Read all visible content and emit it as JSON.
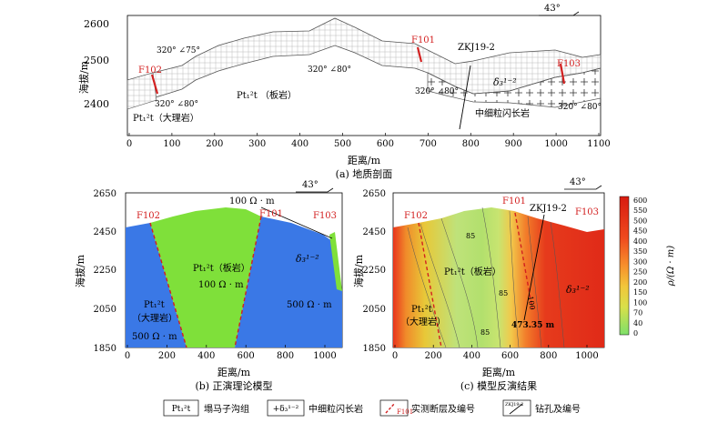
{
  "panel_a": {
    "caption": "(a) 地质剖面",
    "ylabel": "海拔/m",
    "xlabel": "距离/m",
    "yticks": [
      "2600",
      "2500",
      "2400"
    ],
    "xticks": [
      "0",
      "100",
      "200",
      "300",
      "400",
      "500",
      "600",
      "700",
      "800",
      "900",
      "1000",
      "1100"
    ],
    "north_angle": "43°",
    "faults": [
      "F102",
      "F101",
      "F103"
    ],
    "attitudes": [
      "320° ∠75°",
      "320° ∠80°",
      "320° ∠80°",
      "320° ∠80°",
      "320° ∠80°"
    ],
    "unit_slate": "Pt₁²t （板岩）",
    "unit_marble": "Pt₁²t（大理岩）",
    "unit_gabbro": "δ₃¹⁻²",
    "unit_gabbro_label": "中细粒闪长岩",
    "borehole": "ZKJ19-2"
  },
  "panel_b": {
    "caption": "(b) 正演理论模型",
    "ylabel": "海拔/m",
    "xlabel": "距离/m",
    "yticks": [
      "2650",
      "2450",
      "2250",
      "2050",
      "1850"
    ],
    "xticks": [
      "0",
      "200",
      "400",
      "600",
      "800",
      "1000"
    ],
    "north_angle": "43°",
    "faults": [
      "F102",
      "F101",
      "F103"
    ],
    "top_label": "100 Ω · m",
    "slate_label": "Pt₁²t（板岩）",
    "slate_res": "100 Ω · m",
    "marble_label": "Pt₁²t",
    "marble_sub": "（大理岩）",
    "marble_res": "500 Ω · m",
    "gabbro_label": "δ₃¹⁻²",
    "gabbro_res": "500 Ω · m",
    "colors": {
      "blue": "#3a78e6",
      "green": "#7fe03a"
    }
  },
  "panel_c": {
    "caption": "(c) 模型反演结果",
    "ylabel": "海拔/m",
    "xlabel": "距离/m",
    "yticks": [
      "2650",
      "2450",
      "2250",
      "2050",
      "1850"
    ],
    "xticks": [
      "0",
      "200",
      "400",
      "600",
      "800",
      "1000"
    ],
    "north_angle": "43°",
    "faults": [
      "F102",
      "F101",
      "F103"
    ],
    "borehole": "ZKJ19-2",
    "depth_label": "473.35 m",
    "contours": [
      "85",
      "85",
      "85",
      "100"
    ],
    "slate_label": "Pt₁²t（板岩）",
    "marble_label": "Pt₁²t",
    "marble_sub": "（大理岩）",
    "gabbro_label": "δ₃¹⁻²"
  },
  "colorbar": {
    "label": "ρ/(Ω · m)",
    "ticks": [
      "600",
      "550",
      "500",
      "450",
      "400",
      "350",
      "300",
      "250",
      "200",
      "150",
      "100",
      "70",
      "40",
      "0"
    ]
  },
  "legend": {
    "item1_box": "Pt₁²t",
    "item1_text": "塌马子沟组",
    "item2_box": "+δ₃¹⁻²",
    "item2_text": "中细粒闪长岩",
    "item3_box": "F101",
    "item3_text": "实测断层及编号",
    "item4_box": "ZKJ19-2",
    "item4_text": "钻孔及编号"
  }
}
